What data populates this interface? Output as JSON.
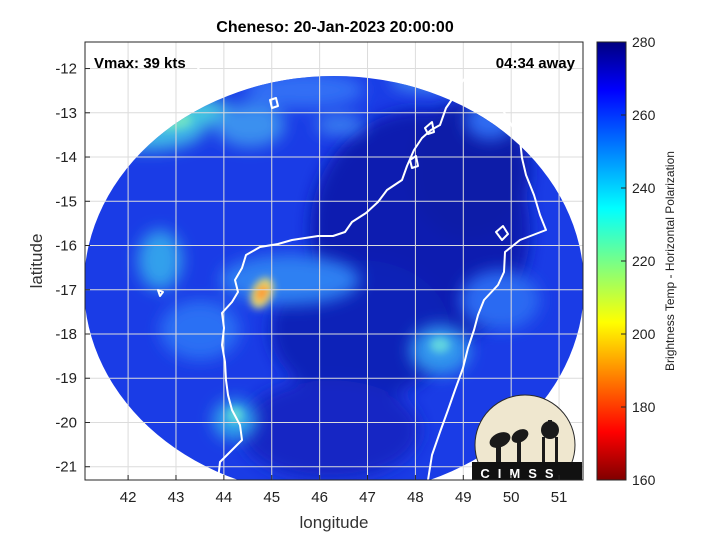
{
  "figure": {
    "title": "Cheneso: 20-Jan-2023 20:00:00",
    "vmax_label": "Vmax: 39 kts",
    "time_away_label": "04:34 away",
    "xlabel": "longitude",
    "ylabel": "latitude",
    "logo_text": "CIMSS"
  },
  "axes": {
    "x_ticks": [
      "42",
      "43",
      "44",
      "45",
      "46",
      "47",
      "48",
      "49",
      "50",
      "51"
    ],
    "y_ticks": [
      "-12",
      "-13",
      "-14",
      "-15",
      "-16",
      "-17",
      "-18",
      "-19",
      "-20",
      "-21"
    ],
    "xlim": [
      41.1,
      51.5
    ],
    "ylim": [
      -21.3,
      -11.4
    ],
    "grid": true
  },
  "colorbar": {
    "label": "Brightness Temp - Horizontal Polarization",
    "ticks": [
      "280",
      "260",
      "240",
      "220",
      "200",
      "180",
      "160"
    ],
    "range": [
      160,
      280
    ],
    "colormap": "jet"
  },
  "chart_data": {
    "type": "heatmap",
    "title": "Cheneso: 20-Jan-2023 20:00:00",
    "xlabel": "longitude",
    "ylabel": "latitude",
    "xlim": [
      41.1,
      51.5
    ],
    "ylim": [
      -21.3,
      -11.4
    ],
    "variable": "Brightness Temp - Horizontal Polarization",
    "value_range": [
      160,
      280
    ],
    "background_value_approx": 262,
    "features": [
      {
        "region": "cloud band near 44.5E, 17.1S",
        "value_approx": 205
      },
      {
        "region": "northwest 41.8-43.5E, 12.8-13.7S",
        "value_approx": 238
      },
      {
        "region": "east 49.0-49.8E, 13-14S",
        "value_approx": 245
      },
      {
        "region": "south 47.5-48.5E, 17.5-19.5S",
        "value_approx": 248
      },
      {
        "region": "southwest 43.5-44.5E, 19.5-20.5S",
        "value_approx": 235
      },
      {
        "region": "west 42.5-43.3E, 15.8-16.8S",
        "value_approx": 240
      }
    ]
  },
  "colors": {
    "coastline": "#ffffff",
    "outside_disc": "#ffffff"
  }
}
